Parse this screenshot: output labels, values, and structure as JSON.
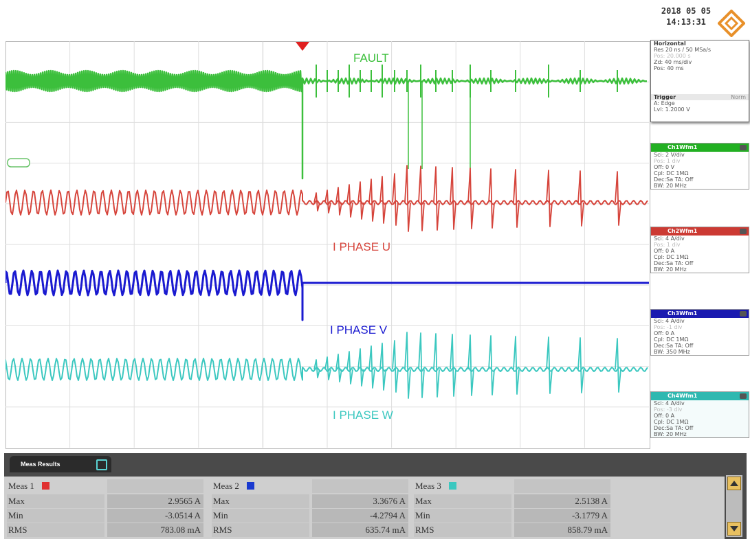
{
  "header": {
    "date": "2018 05 05",
    "time": "14:13:31"
  },
  "channels": [
    {
      "label": "FAULT",
      "color": "#3cbf3c"
    },
    {
      "label": "I PHASE U",
      "color": "#d6453c"
    },
    {
      "label": "I PHASE V",
      "color": "#1a1ad0"
    },
    {
      "label": "I PHASE W",
      "color": "#3cc8c0"
    }
  ],
  "side_panel": {
    "horizontal": {
      "title": "Horizontal",
      "lines": [
        "Res 20 ns / 50 MSa/s",
        "Pos: 20.000 s",
        "Zd: 40 ms/div",
        "Pos: 40 ms"
      ]
    },
    "trigger": {
      "title": "Trigger",
      "mode": "Norm",
      "lines": [
        "A: Edge",
        "Lvl: 1.2000 V"
      ]
    },
    "ch_boxes": [
      {
        "title": "Ch1Wfm1",
        "color": "#22b022",
        "rows": [
          "Sci: 2 V/div",
          "Pos: 1 div",
          "Off: 0 V",
          "Cpl: DC 1MΩ",
          "Dec:Sa     TA: Off",
          "BW: 20 MHz"
        ]
      },
      {
        "title": "Ch2Wfm1",
        "color": "#cc3a33",
        "rows": [
          "Sci: 4 A/div",
          "Pos: 1 div",
          "Off: 0 A",
          "Cpl: DC 1MΩ",
          "Dec:Sa     TA: Off",
          "BW: 20 MHz"
        ]
      },
      {
        "title": "Ch3Wfm1",
        "color": "#1a1ab0",
        "rows": [
          "Sci: 4 A/div",
          "Pos: -1 div",
          "Off: 0 A",
          "Cpl: DC 1MΩ",
          "Dec:Sa     TA: Off",
          "BW: 350 MHz"
        ]
      },
      {
        "title": "Ch4Wfm1",
        "color": "#2fb8b0",
        "rows": [
          "Sci: 4 A/div",
          "Pos: -3 div",
          "Off: 0 A",
          "Cpl: DC 1MΩ",
          "Dec:Sa     TA: Off",
          "BW: 20 MHz"
        ]
      }
    ]
  },
  "meas": {
    "tab_label": "Meas Results",
    "groups": [
      {
        "title": "Meas 1",
        "color": "#e03030",
        "max": "2.9565 A",
        "min": "-3.0514 A",
        "rms": "783.08 mA"
      },
      {
        "title": "Meas 2",
        "color": "#1a3ad0",
        "max": "3.3676 A",
        "min": "-4.2794 A",
        "rms": "635.74 mA"
      },
      {
        "title": "Meas 3",
        "color": "#3cc8c0",
        "max": "2.5138 A",
        "min": "-3.1779 A",
        "rms": "858.79 mA"
      }
    ],
    "row_labels": {
      "max": "Max",
      "min": "Min",
      "rms": "RMS"
    }
  }
}
